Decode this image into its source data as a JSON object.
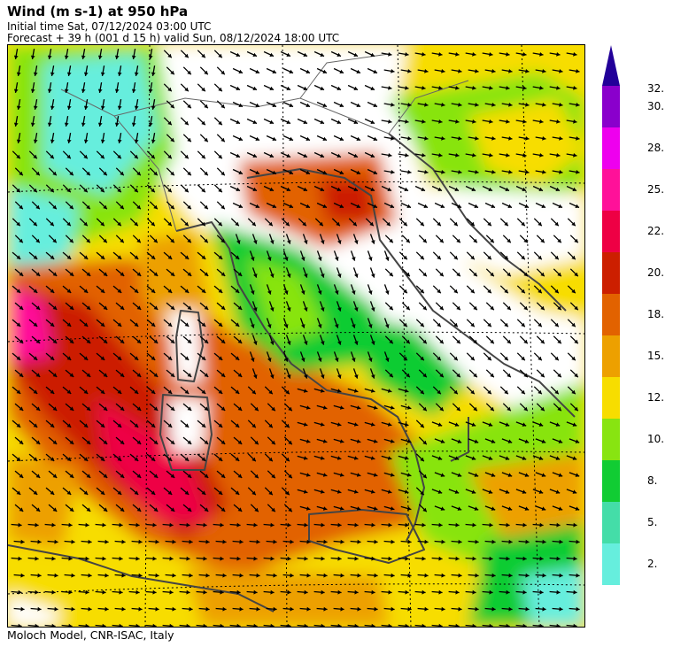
{
  "header": {
    "title": "Wind (m s-1) at 950 hPa",
    "initial_time": "Initial time  Sat, 07/12/2024  03:00 UTC",
    "forecast": "Forecast  +  39 h  (001 d 15 h)  valid Sun, 08/12/2024 18:00 UTC"
  },
  "footer": {
    "credit": "Moloch Model, CNR-ISAC, Italy"
  },
  "colorbar": {
    "unit": "m s-1",
    "levels": [
      {
        "label": "2.",
        "color": "#66eedd"
      },
      {
        "label": "5.",
        "color": "#44dda8"
      },
      {
        "label": "8.",
        "color": "#11cc33"
      },
      {
        "label": "10.",
        "color": "#88e411"
      },
      {
        "label": "12.",
        "color": "#f7dd00"
      },
      {
        "label": "15.",
        "color": "#eda000"
      },
      {
        "label": "18.",
        "color": "#e26200"
      },
      {
        "label": "20.",
        "color": "#cc1f00"
      },
      {
        "label": "22.",
        "color": "#ee0044"
      },
      {
        "label": "25.",
        "color": "#ff1199"
      },
      {
        "label": "28.",
        "color": "#ee00ee"
      },
      {
        "label": "30.",
        "color": "#8a00cc"
      },
      {
        "label": "32.",
        "color": "#220099"
      }
    ]
  },
  "map": {
    "region": "Italy and central Mediterranean",
    "arrow_color": "#000000",
    "coast_color": "#444444",
    "graticule": "dotted"
  }
}
